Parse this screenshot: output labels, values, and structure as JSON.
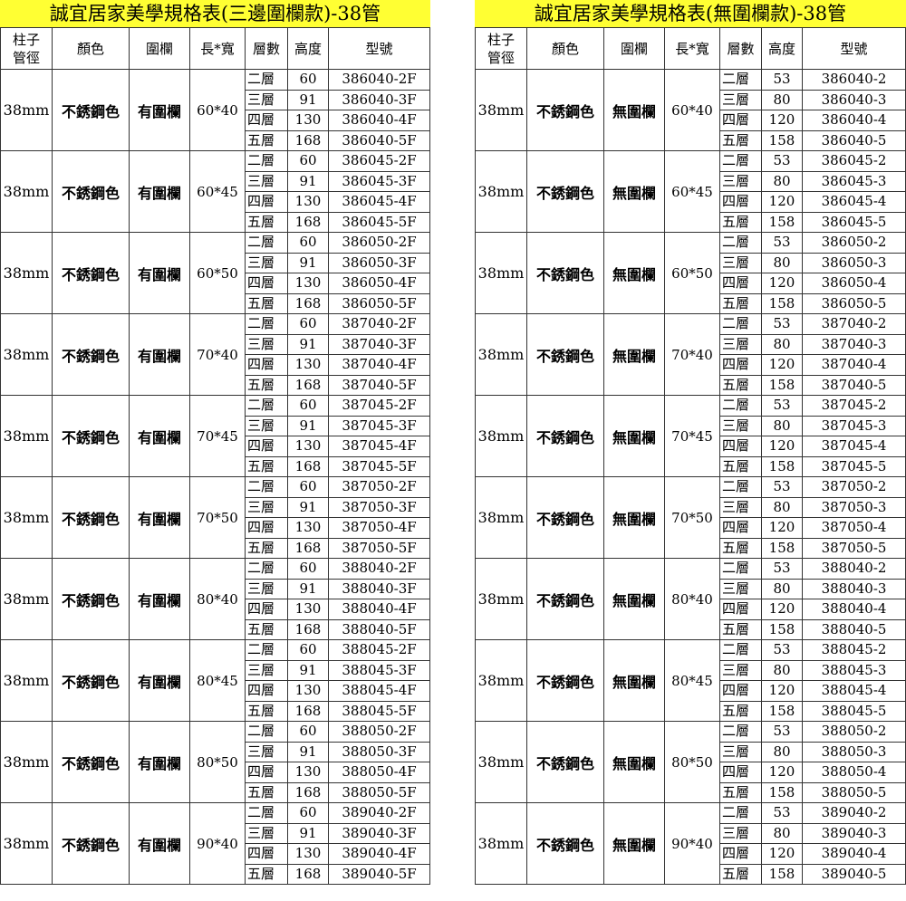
{
  "tables": [
    {
      "title": "誠宜居家美學規格表(三邊圍欄款)-38管",
      "headers": [
        "柱子\n管徑",
        "顏色",
        "圍欄",
        "長*寬",
        "層數",
        "高度",
        "型號"
      ],
      "pipe": "38mm",
      "color": "不銹鋼色",
      "rail": "有圍欄",
      "levels": [
        "二層",
        "三層",
        "四層",
        "五層"
      ],
      "heights": [
        "60",
        "91",
        "130",
        "168"
      ],
      "groups": [
        {
          "size": "60*40",
          "models": [
            "386040-2F",
            "386040-3F",
            "386040-4F",
            "386040-5F"
          ]
        },
        {
          "size": "60*45",
          "models": [
            "386045-2F",
            "386045-3F",
            "386045-4F",
            "386045-5F"
          ]
        },
        {
          "size": "60*50",
          "models": [
            "386050-2F",
            "386050-3F",
            "386050-4F",
            "386050-5F"
          ]
        },
        {
          "size": "70*40",
          "models": [
            "387040-2F",
            "387040-3F",
            "387040-4F",
            "387040-5F"
          ]
        },
        {
          "size": "70*45",
          "models": [
            "387045-2F",
            "387045-3F",
            "387045-4F",
            "387045-5F"
          ]
        },
        {
          "size": "70*50",
          "models": [
            "387050-2F",
            "387050-3F",
            "387050-4F",
            "387050-5F"
          ]
        },
        {
          "size": "80*40",
          "models": [
            "388040-2F",
            "388040-3F",
            "388040-4F",
            "388040-5F"
          ]
        },
        {
          "size": "80*45",
          "models": [
            "388045-2F",
            "388045-3F",
            "388045-4F",
            "388045-5F"
          ]
        },
        {
          "size": "80*50",
          "models": [
            "388050-2F",
            "388050-3F",
            "388050-4F",
            "388050-5F"
          ]
        },
        {
          "size": "90*40",
          "models": [
            "389040-2F",
            "389040-3F",
            "389040-4F",
            "389040-5F"
          ]
        }
      ]
    },
    {
      "title": "誠宜居家美學規格表(無圍欄款)-38管",
      "headers": [
        "柱子\n管徑",
        "顏色",
        "圍欄",
        "長*寬",
        "層數",
        "高度",
        "型號"
      ],
      "pipe": "38mm",
      "color": "不銹鋼色",
      "rail": "無圍欄",
      "levels": [
        "二層",
        "三層",
        "四層",
        "五層"
      ],
      "heights": [
        "53",
        "80",
        "120",
        "158"
      ],
      "groups": [
        {
          "size": "60*40",
          "models": [
            "386040-2",
            "386040-3",
            "386040-4",
            "386040-5"
          ]
        },
        {
          "size": "60*45",
          "models": [
            "386045-2",
            "386045-3",
            "386045-4",
            "386045-5"
          ]
        },
        {
          "size": "60*50",
          "models": [
            "386050-2",
            "386050-3",
            "386050-4",
            "386050-5"
          ]
        },
        {
          "size": "70*40",
          "models": [
            "387040-2",
            "387040-3",
            "387040-4",
            "387040-5"
          ]
        },
        {
          "size": "70*45",
          "models": [
            "387045-2",
            "387045-3",
            "387045-4",
            "387045-5"
          ]
        },
        {
          "size": "70*50",
          "models": [
            "387050-2",
            "387050-3",
            "387050-4",
            "387050-5"
          ]
        },
        {
          "size": "80*40",
          "models": [
            "388040-2",
            "388040-3",
            "388040-4",
            "388040-5"
          ]
        },
        {
          "size": "80*45",
          "models": [
            "388045-2",
            "388045-3",
            "388045-4",
            "388045-5"
          ]
        },
        {
          "size": "80*50",
          "models": [
            "388050-2",
            "388050-3",
            "388050-4",
            "388050-5"
          ]
        },
        {
          "size": "90*40",
          "models": [
            "389040-2",
            "389040-3",
            "389040-4",
            "389040-5"
          ]
        }
      ]
    }
  ]
}
